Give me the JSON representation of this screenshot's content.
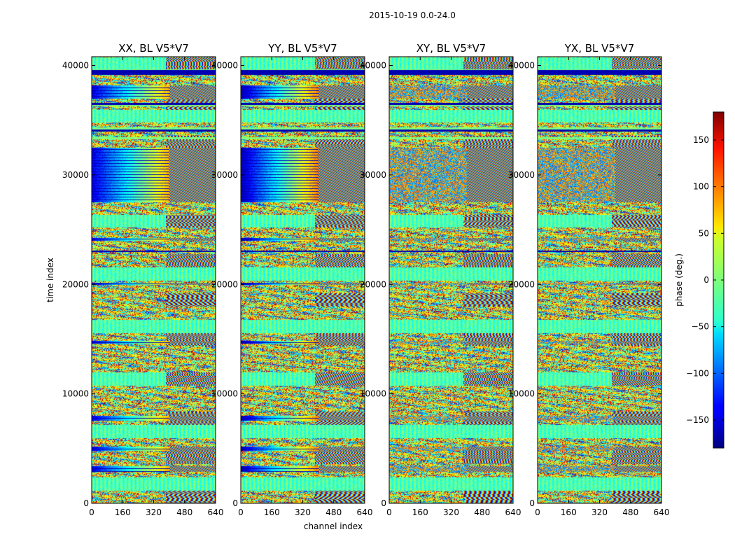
{
  "figure": {
    "suptitle": "2015-10-19 0.0-24.0",
    "xlabel": "channel index",
    "ylabel": "time index"
  },
  "chart_data": {
    "type": "heatmap",
    "colormap": "jet",
    "panels": [
      {
        "title": "XX, BL V5*V7"
      },
      {
        "title": "YY, BL V5*V7"
      },
      {
        "title": "XY, BL V5*V7"
      },
      {
        "title": "YX, BL V5*V7"
      }
    ],
    "xlim": [
      0,
      640
    ],
    "ylim": [
      0,
      40800
    ],
    "x_ticks": [
      0,
      160,
      320,
      480,
      640
    ],
    "y_ticks": [
      0,
      10000,
      20000,
      30000,
      40000
    ],
    "x_tick_labels": [
      "0",
      "160",
      "320",
      "480",
      "640"
    ],
    "y_tick_labels": [
      "0",
      "10000",
      "20000",
      "30000",
      "40000"
    ],
    "colorbar": {
      "label": "phase (deg.)",
      "range": [
        -180,
        180
      ],
      "ticks": [
        -150,
        -100,
        -50,
        0,
        50,
        100,
        150
      ],
      "tick_labels": [
        "−150",
        "−100",
        "−50",
        "0",
        "50",
        "100",
        "150"
      ]
    }
  }
}
